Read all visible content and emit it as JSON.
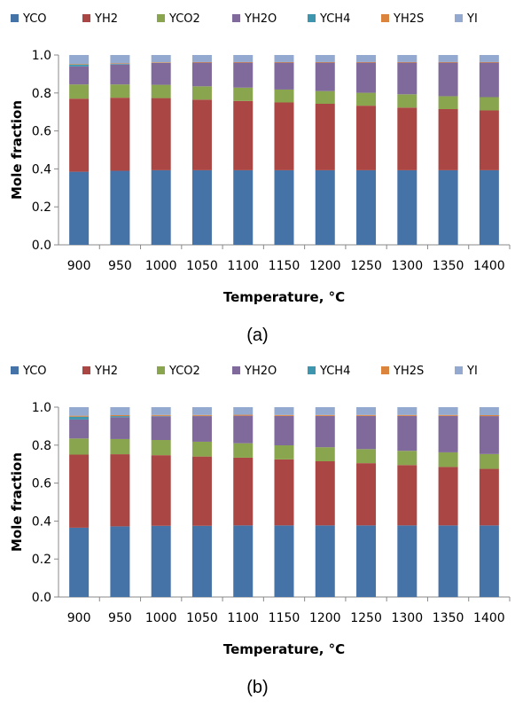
{
  "figure": {
    "caption_a": "(a)",
    "caption_b": "(b)"
  },
  "chart_data": [
    {
      "type": "bar",
      "stacked": true,
      "panel": "(a)",
      "xlabel": "Temperature, °C",
      "ylabel": "Mole fraction",
      "ylim": [
        0,
        1.0
      ],
      "yticks": [
        "0.0",
        "0.2",
        "0.4",
        "0.6",
        "0.8",
        "1.0"
      ],
      "grid": false,
      "legend": "top",
      "categories": [
        "900",
        "950",
        "1000",
        "1050",
        "1100",
        "1150",
        "1200",
        "1250",
        "1300",
        "1350",
        "1400"
      ],
      "series": [
        {
          "name": "YCO",
          "color": "#4572A7",
          "values": [
            0.385,
            0.39,
            0.393,
            0.393,
            0.393,
            0.393,
            0.393,
            0.393,
            0.393,
            0.393,
            0.393
          ]
        },
        {
          "name": "YH2",
          "color": "#AA4643",
          "values": [
            0.385,
            0.385,
            0.38,
            0.372,
            0.365,
            0.357,
            0.35,
            0.34,
            0.33,
            0.322,
            0.315
          ]
        },
        {
          "name": "YCO2",
          "color": "#89A54E",
          "values": [
            0.075,
            0.07,
            0.07,
            0.07,
            0.07,
            0.068,
            0.067,
            0.068,
            0.07,
            0.068,
            0.07
          ]
        },
        {
          "name": "YH2O",
          "color": "#80699B",
          "values": [
            0.095,
            0.105,
            0.115,
            0.125,
            0.132,
            0.142,
            0.15,
            0.159,
            0.167,
            0.177,
            0.182
          ]
        },
        {
          "name": "YCH4",
          "color": "#3D96AE",
          "values": [
            0.01,
            0.003,
            0.001,
            0.0,
            0.0,
            0.0,
            0.0,
            0.0,
            0.0,
            0.0,
            0.0
          ]
        },
        {
          "name": "YH2S",
          "color": "#DB843D",
          "values": [
            0.003,
            0.003,
            0.003,
            0.003,
            0.003,
            0.003,
            0.003,
            0.003,
            0.003,
            0.003,
            0.003
          ]
        },
        {
          "name": "YI",
          "color": "#93A9CF",
          "values": [
            0.047,
            0.044,
            0.038,
            0.037,
            0.037,
            0.037,
            0.037,
            0.037,
            0.037,
            0.037,
            0.037
          ]
        }
      ]
    },
    {
      "type": "bar",
      "stacked": true,
      "panel": "(b)",
      "xlabel": "Temperature, °C",
      "ylabel": "Mole fraction",
      "ylim": [
        0,
        1.0
      ],
      "yticks": [
        "0.0",
        "0.2",
        "0.4",
        "0.6",
        "0.8",
        "1.0"
      ],
      "grid": false,
      "legend": "top",
      "categories": [
        "900",
        "950",
        "1000",
        "1050",
        "1100",
        "1150",
        "1200",
        "1250",
        "1300",
        "1350",
        "1400"
      ],
      "series": [
        {
          "name": "YCO",
          "color": "#4572A7",
          "values": [
            0.365,
            0.372,
            0.375,
            0.375,
            0.377,
            0.377,
            0.377,
            0.377,
            0.377,
            0.377,
            0.377
          ]
        },
        {
          "name": "YH2",
          "color": "#AA4643",
          "values": [
            0.385,
            0.38,
            0.372,
            0.365,
            0.357,
            0.348,
            0.338,
            0.328,
            0.318,
            0.308,
            0.298
          ]
        },
        {
          "name": "YCO2",
          "color": "#89A54E",
          "values": [
            0.085,
            0.08,
            0.08,
            0.078,
            0.076,
            0.074,
            0.074,
            0.074,
            0.075,
            0.077,
            0.078
          ]
        },
        {
          "name": "YH2O",
          "color": "#80699B",
          "values": [
            0.1,
            0.115,
            0.125,
            0.135,
            0.145,
            0.155,
            0.165,
            0.175,
            0.184,
            0.192,
            0.2
          ]
        },
        {
          "name": "YCH4",
          "color": "#3D96AE",
          "values": [
            0.015,
            0.006,
            0.002,
            0.001,
            0.0,
            0.0,
            0.0,
            0.0,
            0.0,
            0.0,
            0.0
          ]
        },
        {
          "name": "YH2S",
          "color": "#DB843D",
          "values": [
            0.005,
            0.005,
            0.005,
            0.005,
            0.005,
            0.005,
            0.005,
            0.005,
            0.005,
            0.005,
            0.005
          ]
        },
        {
          "name": "YI",
          "color": "#93A9CF",
          "values": [
            0.045,
            0.042,
            0.041,
            0.041,
            0.04,
            0.041,
            0.041,
            0.041,
            0.041,
            0.041,
            0.042
          ]
        }
      ]
    }
  ]
}
